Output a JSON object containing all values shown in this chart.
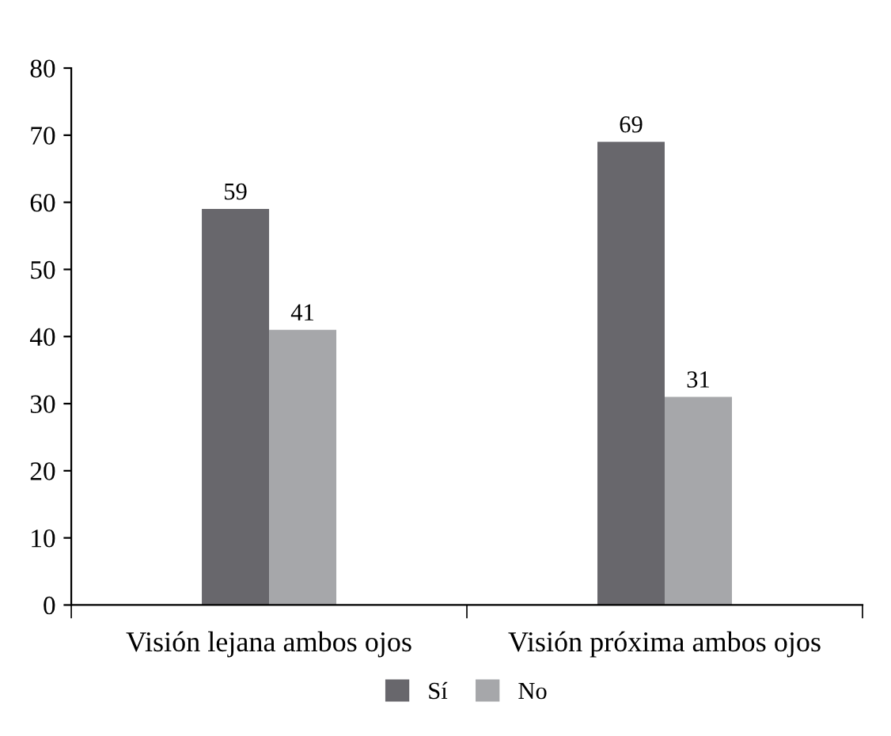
{
  "chart_data": {
    "type": "bar",
    "categories": [
      "Visión lejana ambos ojos",
      "Visión próxima ambos ojos"
    ],
    "series": [
      {
        "name": "Sí",
        "color": "#68676c",
        "values": [
          59,
          69
        ]
      },
      {
        "name": "No",
        "color": "#a6a7aa",
        "values": [
          41,
          31
        ]
      }
    ],
    "ylim": [
      0,
      80
    ],
    "yticks": [
      0,
      10,
      20,
      30,
      40,
      50,
      60,
      70,
      80
    ],
    "grid": false,
    "legend": "bottom",
    "data_labels": true
  }
}
